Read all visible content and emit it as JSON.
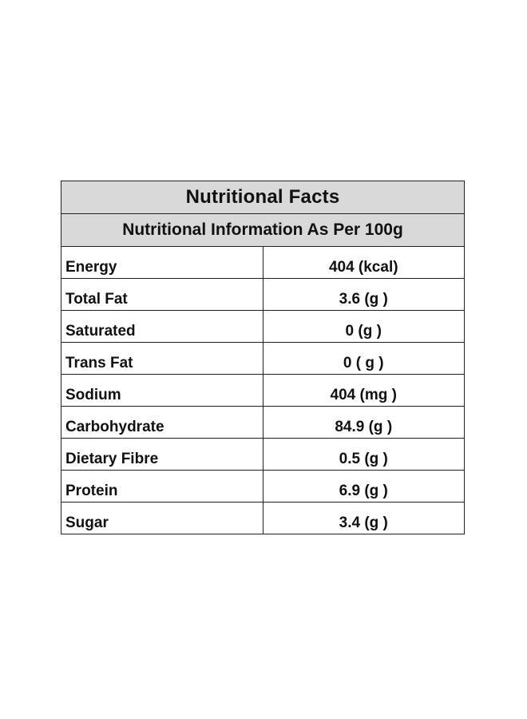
{
  "title": "Nutritional Facts",
  "subtitle": "Nutritional Information As Per 100g",
  "rows": [
    {
      "name": "Energy",
      "value": "404 (kcal)"
    },
    {
      "name": "Total Fat",
      "value": "3.6 (g )"
    },
    {
      "name": "Saturated",
      "value": "0 (g )"
    },
    {
      "name": "Trans Fat",
      "value": "0 ( g )"
    },
    {
      "name": "Sodium",
      "value": "404 (mg )"
    },
    {
      "name": "Carbohydrate",
      "value": "84.9 (g )"
    },
    {
      "name": "Dietary Fibre",
      "value": "0.5 (g )"
    },
    {
      "name": "Protein",
      "value": "6.9 (g )"
    },
    {
      "name": "Sugar",
      "value": "3.4 (g )"
    }
  ],
  "colors": {
    "header_background": "#d9d9d9",
    "border": "#222222",
    "text": "#111111"
  }
}
